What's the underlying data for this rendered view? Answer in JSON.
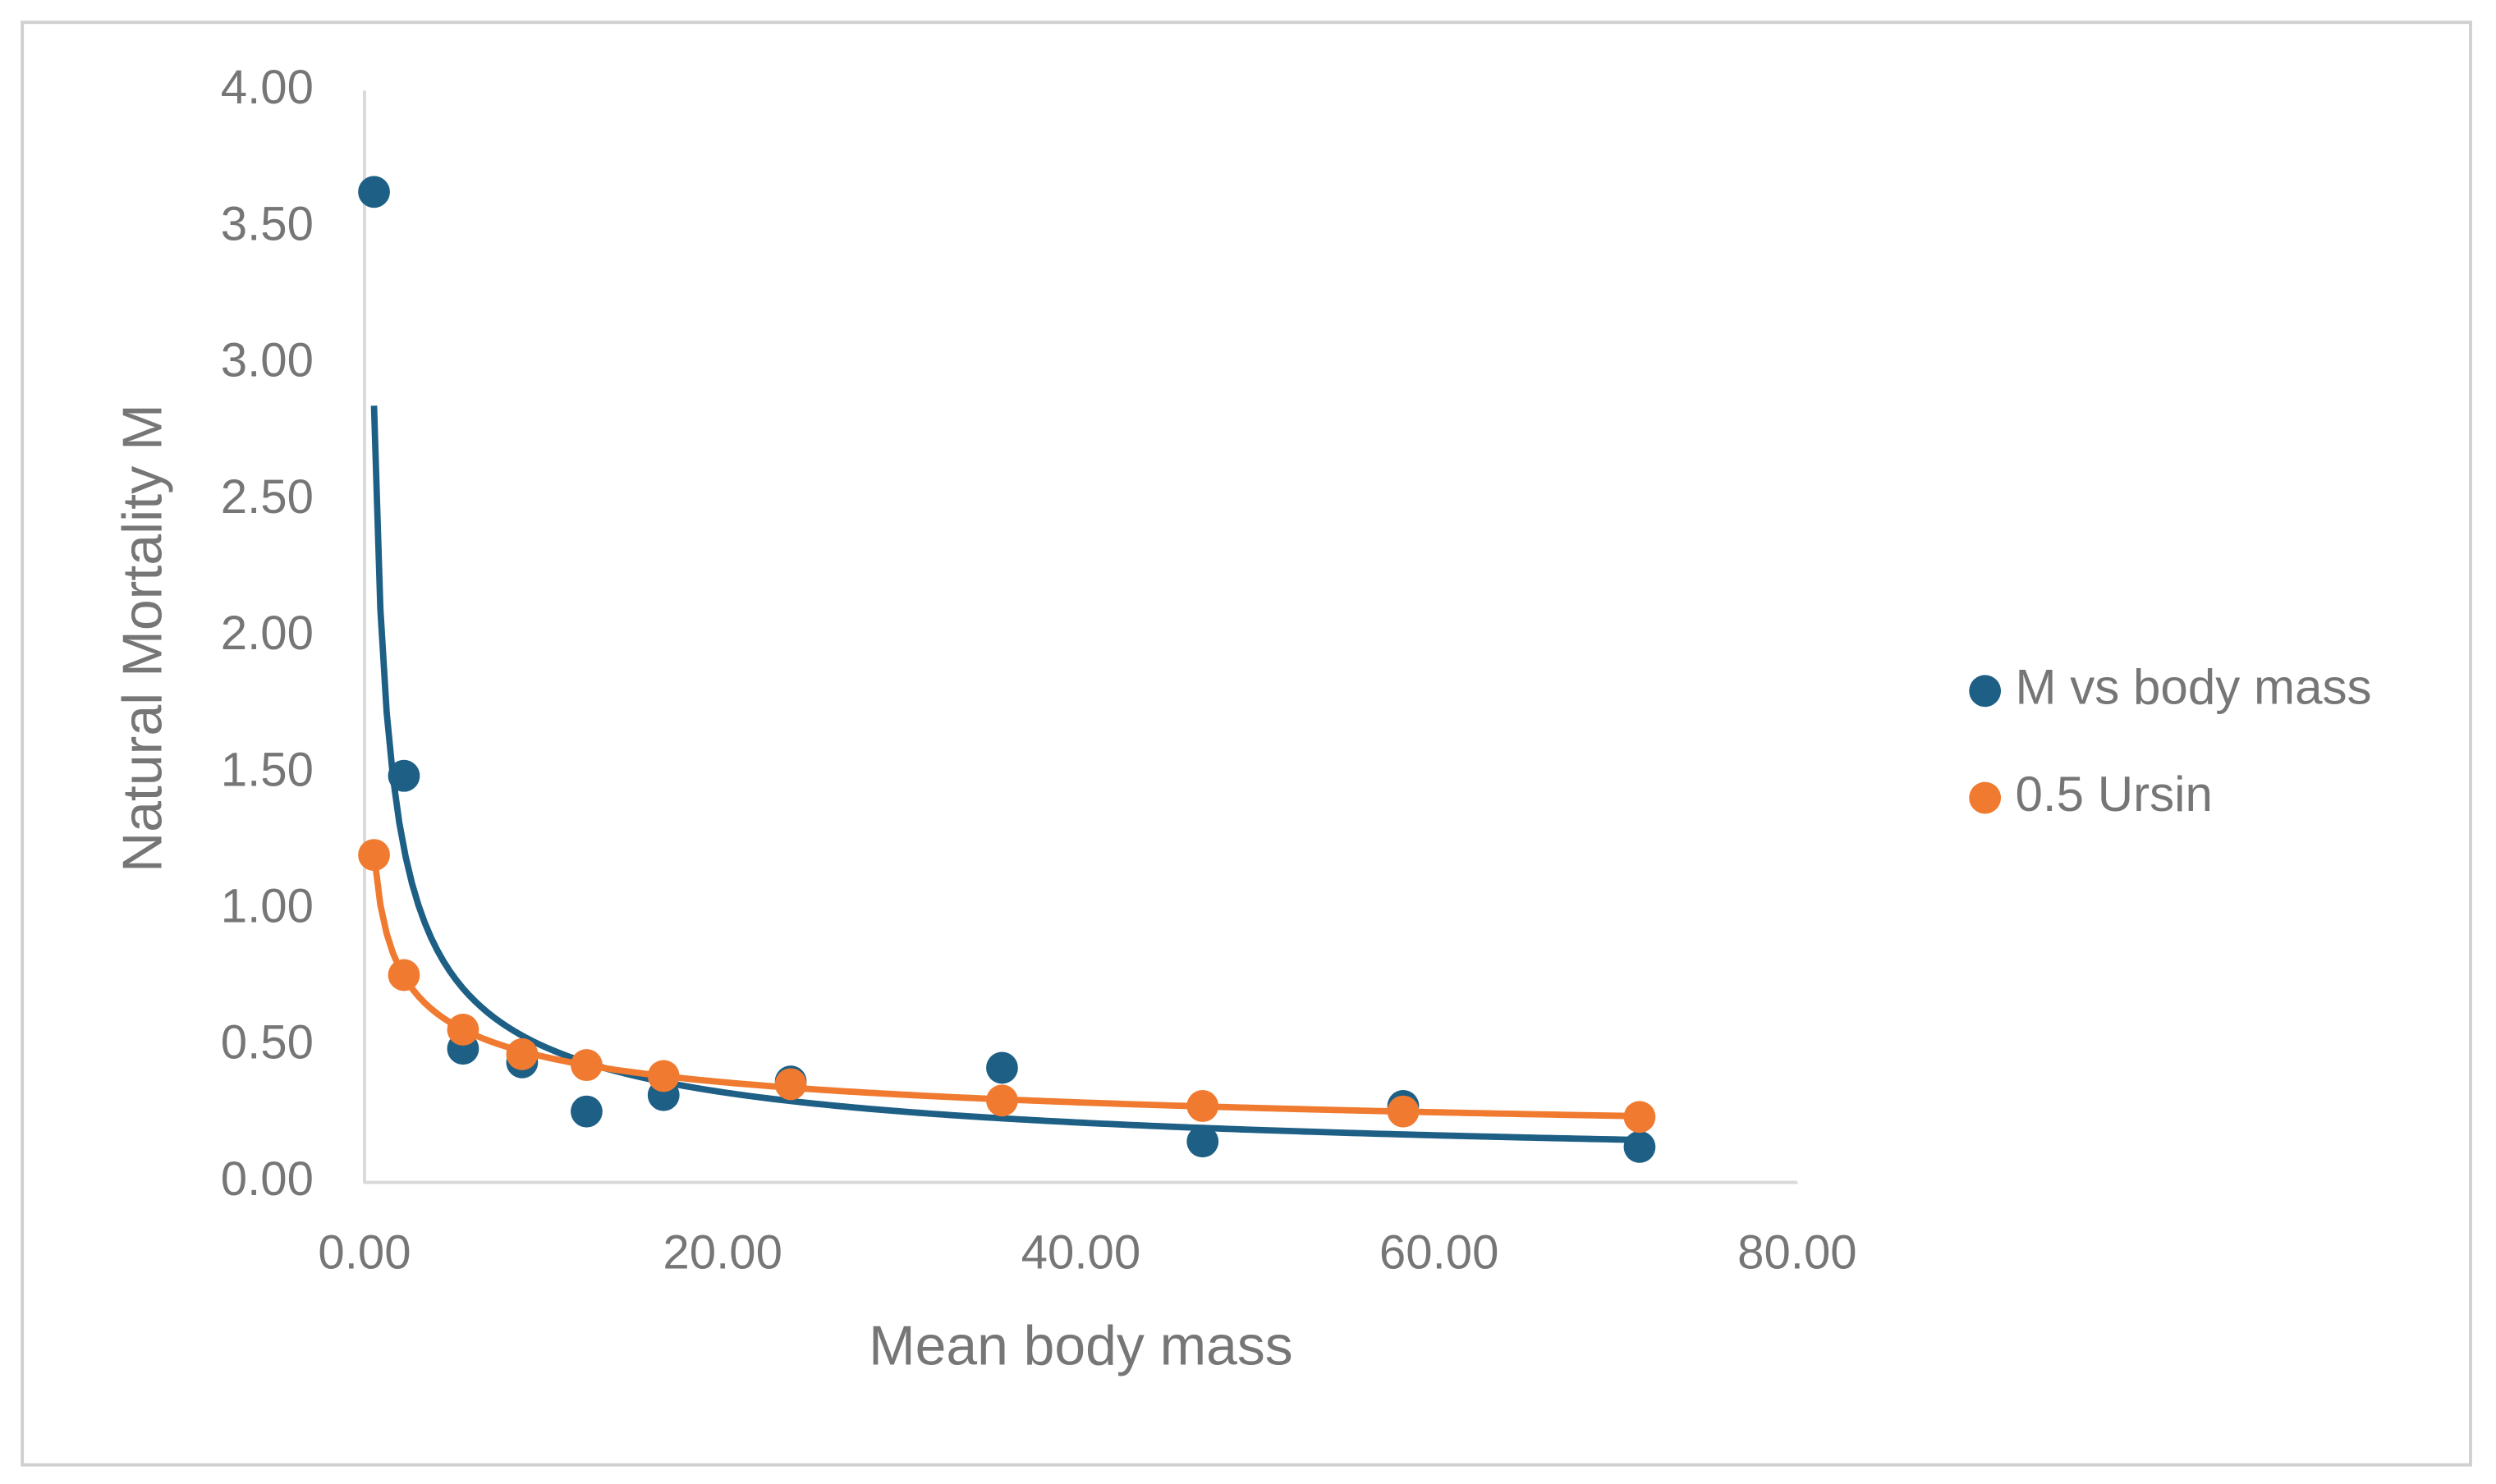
{
  "chart_data": {
    "type": "scatter",
    "x_label": "Mean body mass",
    "y_label": "Natural Mortality M",
    "xlim": [
      0,
      80
    ],
    "xticks": [
      {
        "value": 0,
        "label": "0.00"
      },
      {
        "value": 20,
        "label": "20.00"
      },
      {
        "value": 40,
        "label": "40.00"
      },
      {
        "value": 60,
        "label": "60.00"
      },
      {
        "value": 80,
        "label": "80.00"
      }
    ],
    "ylim": [
      0,
      4
    ],
    "yticks": [
      {
        "value": 0,
        "label": "0.00"
      },
      {
        "value": 0.5,
        "label": "0.50"
      },
      {
        "value": 1,
        "label": "1.00"
      },
      {
        "value": 1.5,
        "label": "1.50"
      },
      {
        "value": 2,
        "label": "2.00"
      },
      {
        "value": 2.5,
        "label": "2.50"
      },
      {
        "value": 3,
        "label": "3.00"
      },
      {
        "value": 3.5,
        "label": "3.50"
      },
      {
        "value": 4,
        "label": "4.00"
      }
    ],
    "trendline": "power",
    "legend": "right",
    "series": [
      {
        "name": "M vs body mass",
        "color": "#1d5f85",
        "x": [
          0.53,
          2.2,
          5.5,
          8.8,
          12.4,
          16.7,
          23.8,
          35.6,
          46.8,
          58.0,
          71.2
        ],
        "values": [
          3.63,
          1.49,
          0.49,
          0.44,
          0.26,
          0.32,
          0.37,
          0.42,
          0.15,
          0.28,
          0.13
        ]
      },
      {
        "name": "0.5 Ursin",
        "color": "#f07a30",
        "x": [
          0.53,
          2.2,
          5.5,
          8.8,
          12.4,
          16.7,
          23.8,
          35.6,
          46.8,
          58.0,
          71.2
        ],
        "values": [
          1.2,
          0.76,
          0.56,
          0.47,
          0.43,
          0.39,
          0.36,
          0.3,
          0.28,
          0.26,
          0.24
        ]
      }
    ]
  }
}
